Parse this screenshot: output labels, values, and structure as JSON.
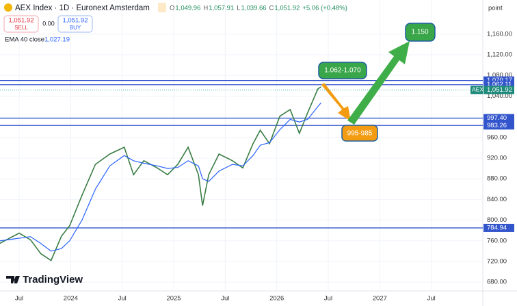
{
  "chart_data": {
    "type": "line",
    "title": "AEX Index · 1D · Euronext Amsterdam",
    "ohlc": [
      [
        "O",
        "1,049.96"
      ],
      [
        "H",
        "1,057.91"
      ],
      [
        "L",
        "1,039.66"
      ],
      [
        "C",
        "1,051.92"
      ]
    ],
    "change": "+5.06 (+0.48%)",
    "sell": {
      "price": "1,051.92",
      "label": "SELL"
    },
    "spread": "0.00",
    "buy": {
      "price": "1,051.92",
      "label": "BUY"
    },
    "indicator": {
      "name": "EMA 40 close",
      "value": "1,027.19"
    },
    "y_axis_unit": "point",
    "symbol_tag": "AEX",
    "last_price": {
      "value": 1051.92,
      "label": "1,051.92"
    },
    "brand": "TradingView",
    "x": [
      2023.31,
      2023.5,
      2023.61,
      2023.71,
      2023.81,
      2023.91,
      2023.99,
      2024.11,
      2024.24,
      2024.38,
      2024.52,
      2024.61,
      2024.71,
      2024.84,
      2024.94,
      2025.04,
      2025.14,
      2025.24,
      2025.28,
      2025.34,
      2025.44,
      2025.57,
      2025.67,
      2025.77,
      2025.84,
      2025.93,
      2026.03,
      2026.13,
      2026.22,
      2026.3,
      2026.4,
      2026.43
    ],
    "series": [
      {
        "name": "AEX",
        "color": "#3a7d44",
        "values": [
          755,
          775,
          762,
          735,
          722,
          769,
          789,
          848,
          908,
          928,
          941,
          888,
          915,
          901,
          888,
          908,
          941,
          888,
          828,
          888,
          928,
          915,
          901,
          948,
          974,
          948,
          1001,
          1014,
          968,
          1008,
          1054,
          1058
        ]
      },
      {
        "name": "EMA 40 close",
        "color": "#2962ff",
        "values": [
          760,
          765,
          768,
          755,
          740,
          745,
          760,
          800,
          860,
          905,
          925,
          915,
          910,
          905,
          900,
          902,
          915,
          905,
          880,
          875,
          895,
          908,
          905,
          925,
          945,
          950,
          975,
          995,
          990,
          995,
          1020,
          1027
        ]
      }
    ],
    "levels": [
      {
        "value": 1070.17,
        "label": "1,070.17"
      },
      {
        "value": 1062.11,
        "label": "1,062.11"
      },
      {
        "value": 997.4,
        "label": "997.40"
      },
      {
        "value": 983.26,
        "label": "983.26"
      },
      {
        "value": 784.94,
        "label": "784.94"
      }
    ],
    "level_color": "#3355cc",
    "annotations": [
      "1.062-1.070",
      "995-985",
      "1.150"
    ],
    "xlim": [
      2023.314,
      2028.0
    ],
    "ylim": [
      663,
      1226
    ],
    "xticks": [
      {
        "value": 2023.5,
        "label": "Jul"
      },
      {
        "value": 2024.0,
        "label": "2024"
      },
      {
        "value": 2024.5,
        "label": "Jul"
      },
      {
        "value": 2025.0,
        "label": "2025"
      },
      {
        "value": 2025.5,
        "label": "Jul"
      },
      {
        "value": 2026.0,
        "label": "2026"
      },
      {
        "value": 2026.5,
        "label": "Jul"
      },
      {
        "value": 2027.0,
        "label": "2027"
      },
      {
        "value": 2027.5,
        "label": "Jul"
      }
    ],
    "yticks": [
      {
        "value": 1160,
        "label": "1,160.00"
      },
      {
        "value": 1120,
        "label": "1,120.00"
      },
      {
        "value": 1080,
        "label": "1,080.00"
      },
      {
        "value": 1040,
        "label": "1,040.00"
      },
      {
        "value": 960,
        "label": "960.00"
      },
      {
        "value": 920,
        "label": "920.00"
      },
      {
        "value": 880,
        "label": "880.00"
      },
      {
        "value": 840,
        "label": "840.00"
      },
      {
        "value": 800,
        "label": "800.00"
      },
      {
        "value": 760,
        "label": "760.00"
      },
      {
        "value": 720,
        "label": "720.00"
      },
      {
        "value": 680,
        "label": "680.00"
      }
    ],
    "grid": true
  }
}
